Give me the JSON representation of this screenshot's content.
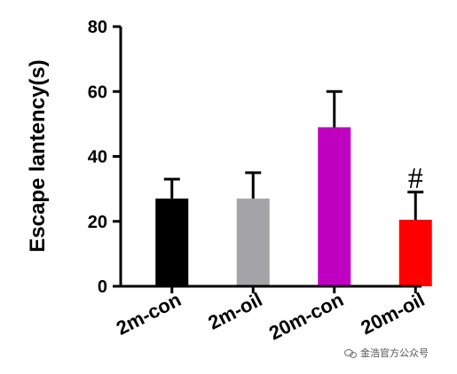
{
  "chart_data": {
    "type": "bar",
    "title": "",
    "xlabel": "",
    "ylabel": "Escape lantency(s)",
    "ylim": [
      0,
      80
    ],
    "yticks": [
      0,
      20,
      40,
      60,
      80
    ],
    "grid": false,
    "categories": [
      "2m-con",
      "2m-oil",
      "20m-con",
      "20m-oil"
    ],
    "values": [
      27,
      27,
      49,
      20.5
    ],
    "errors": [
      6,
      8,
      11,
      8.5
    ],
    "colors": [
      "#000000",
      "#a3a3a8",
      "#c000c0",
      "#ff0000"
    ],
    "annotations": [
      {
        "category": "20m-oil",
        "text": "#"
      }
    ]
  },
  "watermark": {
    "icon": "wechat-icon",
    "text": "金浩官方公众号"
  }
}
